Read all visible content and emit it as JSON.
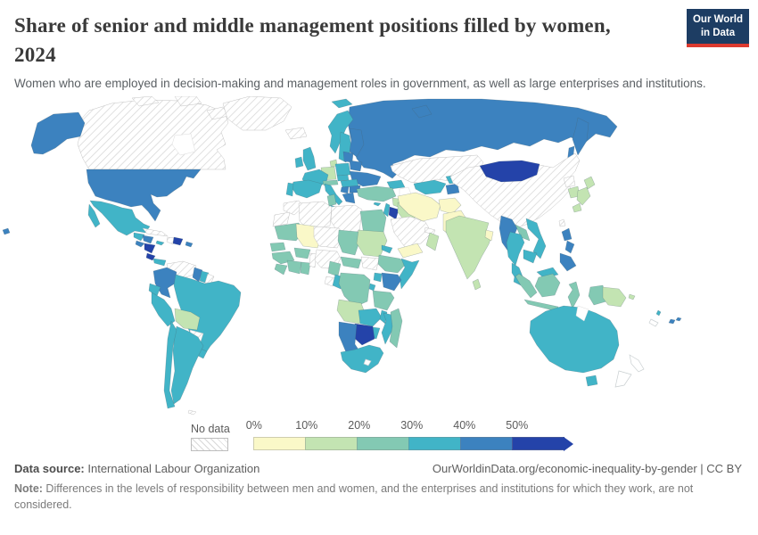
{
  "header": {
    "title_line1": "Share of senior and middle management positions filled by women,",
    "title_line2": "2024",
    "subtitle": "Women who are employed in decision-making and management roles in government, as well as large enterprises and institutions.",
    "logo": {
      "line1": "Our World",
      "line2": "in Data",
      "bg": "#1d3d63",
      "accent": "#dc3a2f"
    }
  },
  "legend": {
    "no_data_label": "No data",
    "tick_labels": [
      "0%",
      "10%",
      "20%",
      "30%",
      "40%",
      "50%"
    ],
    "bins": [
      {
        "range": "0-10%",
        "color": "#FAF8C8"
      },
      {
        "range": "10-20%",
        "color": "#C3E4B2"
      },
      {
        "range": "20-30%",
        "color": "#83C9B3"
      },
      {
        "range": "30-40%",
        "color": "#41B4C7"
      },
      {
        "range": "40-50%",
        "color": "#3C82BF"
      },
      {
        "range": "50%+",
        "color": "#2443A9"
      }
    ]
  },
  "footer": {
    "data_source_label": "Data source:",
    "data_source": " International Labour Organization",
    "attribution": "OurWorldinData.org/economic-inequality-by-gender | CC BY",
    "note_label": "Note:",
    "note": " Differences in the levels of responsibility between men and women, and the enterprises and institutions for which they work, are not considered."
  },
  "chart_data": {
    "type": "choropleth_map",
    "title": "Share of senior and middle management positions filled by women, 2024",
    "year": "2024",
    "unit": "%",
    "bins": [
      "0-10%",
      "10-20%",
      "20-30%",
      "30-40%",
      "40-50%",
      "50%+",
      "No data"
    ],
    "countries": {
      "canada": "No data",
      "greenland": "No data",
      "iceland": "No data",
      "united-states": "40-50%",
      "mexico": "30-40%",
      "guatemala": "30-40%",
      "honduras": "40-50%",
      "el-salvador": "40-50%",
      "nicaragua": "50%+",
      "costa-rica": "50%+",
      "panama": "30-40%",
      "cuba": "No data",
      "jamaica": "30-40%",
      "haiti": "No data",
      "dominican-republic": "50%+",
      "puerto-rico": "40-50%",
      "colombia": "40-50%",
      "venezuela": "No data",
      "guyana": "40-50%",
      "suriname": "30-40%",
      "french-guiana": "No data",
      "ecuador": "30-40%",
      "peru": "30-40%",
      "brazil": "30-40%",
      "bolivia": "10-20%",
      "paraguay": "No data",
      "uruguay": "30-40%",
      "argentina": "30-40%",
      "chile": "30-40%",
      "falkland-islands": "No data",
      "norway": "30-40%",
      "sweden": "30-40%",
      "finland": "40-50%",
      "denmark": "10-20%",
      "united-kingdom": "30-40%",
      "ireland": "30-40%",
      "germany": "10-20%",
      "france": "30-40%",
      "spain": "30-40%",
      "portugal": "30-40%",
      "poland": "30-40%",
      "czechia": "30-40%",
      "austria": "20-30%",
      "hungary": "30-40%",
      "serbia": "40-50%",
      "bulgaria": "40-50%",
      "greece": "40-50%",
      "italy": "30-40%",
      "baltic-states": "40-50%",
      "belarus": "40-50%",
      "ukraine": "40-50%",
      "russia": "40-50%",
      "kazakhstan": "No data",
      "uzbekistan": "30-40%",
      "turkmenistan": "No data",
      "kyrgyzstan": "30-40%",
      "tajikistan": "40-50%",
      "georgia": "30-40%",
      "turkey": "20-30%",
      "cyprus": "30-40%",
      "syria": "10-20%",
      "israel": "30-40%",
      "jordan": "50%+",
      "iraq": "10-20%",
      "saudi-arabia": "No data",
      "united-arab-emirates": "No data",
      "yemen": "0-10%",
      "oman": "10-20%",
      "iran": "0-10%",
      "afghanistan": "0-10%",
      "pakistan": "0-10%",
      "india": "10-20%",
      "sri-lanka": "10-20%",
      "bangladesh": "0-10%",
      "china": "No data",
      "mongolia": "50%+",
      "north-korea": "No data",
      "south-korea": "10-20%",
      "japan": "10-20%",
      "taiwan": "No data",
      "myanmar": "40-50%",
      "laos": "20-30%",
      "vietnam": "30-40%",
      "thailand": "30-40%",
      "cambodia": "30-40%",
      "malaysia": "30-40%",
      "philippines": "40-50%",
      "indonesia": "20-30%",
      "papua-new-guinea": "10-20%",
      "solomon-islands": "10-20%",
      "fiji": "40-50%",
      "vanuatu": "30-40%",
      "australia": "30-40%",
      "new-zealand": "No data",
      "new-caledonia": "No data",
      "morocco": "No data",
      "western-sahara": "No data",
      "algeria": "No data",
      "tunisia": "20-30%",
      "libya": "No data",
      "egypt": "20-30%",
      "mauritania": "20-30%",
      "mali": "0-10%",
      "senegal": "20-30%",
      "guinea": "20-30%",
      "sierra-leone": "20-30%",
      "ivory-coast": "20-30%",
      "ghana": "20-30%",
      "burkina-faso": "20-30%",
      "benin": "No data",
      "nigeria": "No data",
      "niger": "No data",
      "chad": "20-30%",
      "sudan": "10-20%",
      "eritrea": "30-40%",
      "ethiopia": "20-30%",
      "somalia": "30-40%",
      "kenya": "40-50%",
      "uganda": "30-40%",
      "south-sudan": "No data",
      "central-african-republic": "20-30%",
      "cameroon": "20-30%",
      "gabon": "No data",
      "congo": "30-40%",
      "democratic-republic-of-congo": "20-30%",
      "rwanda": "30-40%",
      "tanzania": "20-30%",
      "angola": "10-20%",
      "zambia": "30-40%",
      "malawi": "30-40%",
      "mozambique": "30-40%",
      "zimbabwe": "30-40%",
      "botswana": "50%+",
      "namibia": "40-50%",
      "south-africa": "30-40%",
      "lesotho": "No data",
      "madagascar": "20-30%"
    }
  }
}
